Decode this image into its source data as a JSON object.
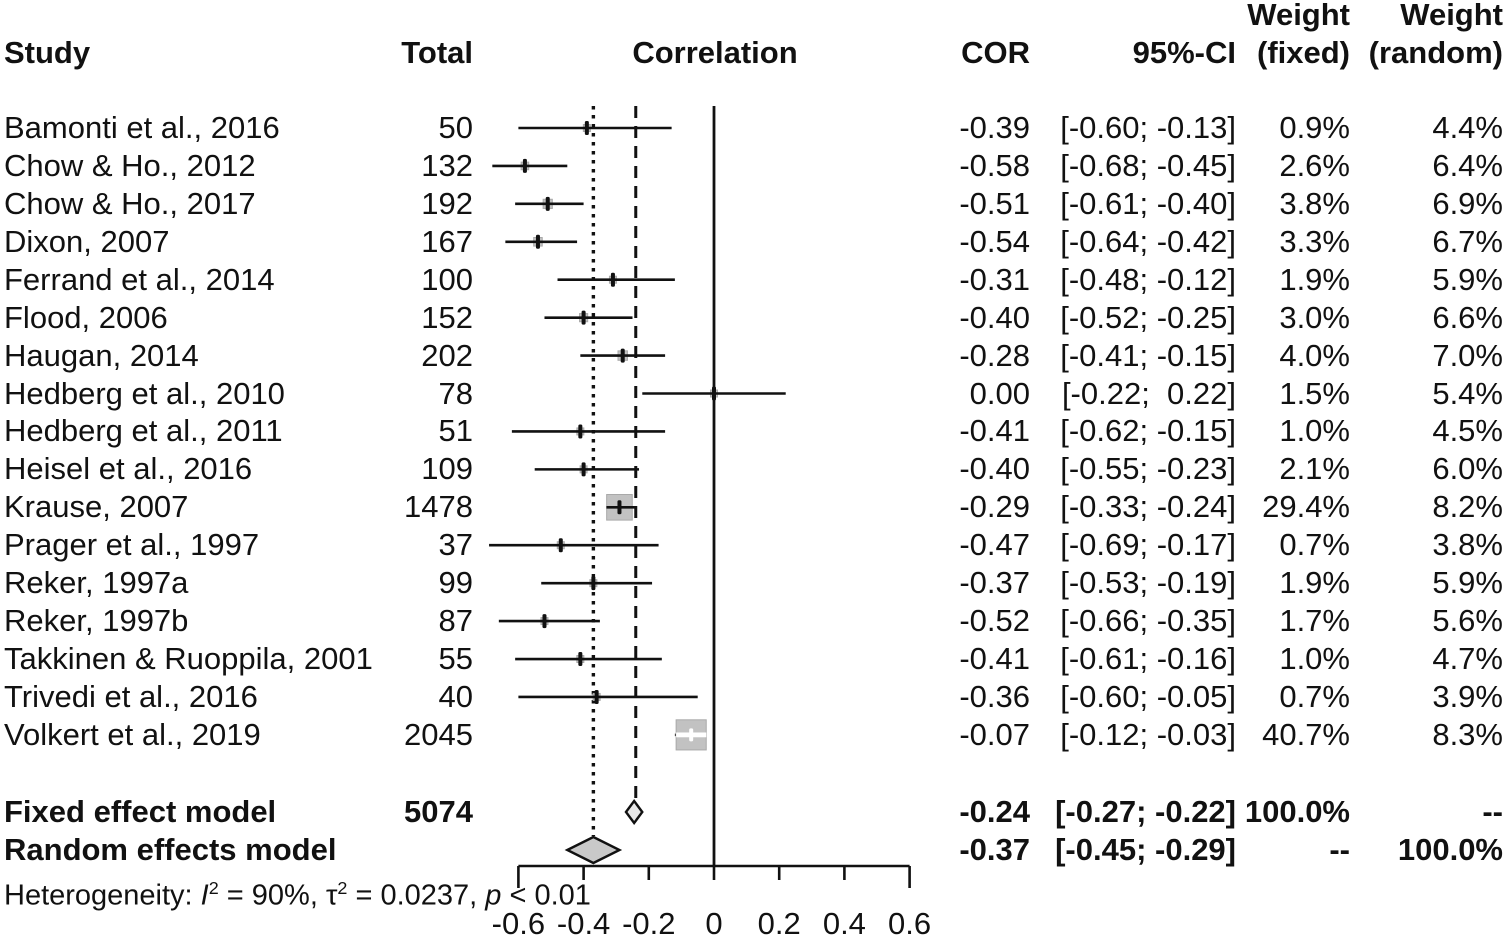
{
  "header": {
    "study": "Study",
    "total": "Total",
    "correlation": "Correlation",
    "cor": "COR",
    "ci": "95%-CI",
    "weight_fixed_line1": "Weight",
    "weight_fixed_line2": "(fixed)",
    "weight_random_line1": "Weight",
    "weight_random_line2": "(random)"
  },
  "colors": {
    "ink": "#111111",
    "square_fill": "#c2c2c2",
    "square_edge": "#a9a9a9",
    "fixed_diamond_fill": "#e8e8e8",
    "random_diamond_fill": "#c9c9c9"
  },
  "chart_data": {
    "type": "scatter",
    "variant": "forest-plot-meta-analysis",
    "xlabel": "Correlation",
    "x_axis": {
      "tick_values": [
        -0.6,
        -0.4,
        -0.2,
        0,
        0.2,
        0.4,
        0.6
      ],
      "ticks": [
        "-0.6",
        "-0.4",
        "-0.2",
        "0",
        "0.2",
        "0.4",
        "0.6"
      ],
      "range": [
        -0.6,
        0.6
      ]
    },
    "reference_lines": {
      "null_effect_solid": 0,
      "fixed_effect_dashed": -0.24,
      "random_effects_dotted": -0.37
    },
    "studies": [
      {
        "label": "Bamonti et al., 2016",
        "total": "50",
        "cor": -0.39,
        "ci": [
          -0.6,
          -0.13
        ],
        "cor_text": "-0.39",
        "ci_text": "[-0.60; -0.13]",
        "weight_fixed": "0.9%",
        "weight_random": "4.4%",
        "weight_fixed_value": 0.9
      },
      {
        "label": "Chow & Ho., 2012",
        "total": "132",
        "cor": -0.58,
        "ci": [
          -0.68,
          -0.45
        ],
        "cor_text": "-0.58",
        "ci_text": "[-0.68; -0.45]",
        "weight_fixed": "2.6%",
        "weight_random": "6.4%",
        "weight_fixed_value": 2.6
      },
      {
        "label": "Chow & Ho., 2017",
        "total": "192",
        "cor": -0.51,
        "ci": [
          -0.61,
          -0.4
        ],
        "cor_text": "-0.51",
        "ci_text": "[-0.61; -0.40]",
        "weight_fixed": "3.8%",
        "weight_random": "6.9%",
        "weight_fixed_value": 3.8
      },
      {
        "label": "Dixon, 2007",
        "total": "167",
        "cor": -0.54,
        "ci": [
          -0.64,
          -0.42
        ],
        "cor_text": "-0.54",
        "ci_text": "[-0.64; -0.42]",
        "weight_fixed": "3.3%",
        "weight_random": "6.7%",
        "weight_fixed_value": 3.3
      },
      {
        "label": "Ferrand et al., 2014",
        "total": "100",
        "cor": -0.31,
        "ci": [
          -0.48,
          -0.12
        ],
        "cor_text": "-0.31",
        "ci_text": "[-0.48; -0.12]",
        "weight_fixed": "1.9%",
        "weight_random": "5.9%",
        "weight_fixed_value": 1.9
      },
      {
        "label": "Flood, 2006",
        "total": "152",
        "cor": -0.4,
        "ci": [
          -0.52,
          -0.25
        ],
        "cor_text": "-0.40",
        "ci_text": "[-0.52; -0.25]",
        "weight_fixed": "3.0%",
        "weight_random": "6.6%",
        "weight_fixed_value": 3.0
      },
      {
        "label": "Haugan, 2014",
        "total": "202",
        "cor": -0.28,
        "ci": [
          -0.41,
          -0.15
        ],
        "cor_text": "-0.28",
        "ci_text": "[-0.41; -0.15]",
        "weight_fixed": "4.0%",
        "weight_random": "7.0%",
        "weight_fixed_value": 4.0
      },
      {
        "label": "Hedberg et al., 2010",
        "total": "78",
        "cor": 0.0,
        "ci": [
          -0.22,
          0.22
        ],
        "cor_text": "0.00",
        "ci_text": "[-0.22;  0.22]",
        "weight_fixed": "1.5%",
        "weight_random": "5.4%",
        "weight_fixed_value": 1.5
      },
      {
        "label": "Hedberg et al., 2011",
        "total": "51",
        "cor": -0.41,
        "ci": [
          -0.62,
          -0.15
        ],
        "cor_text": "-0.41",
        "ci_text": "[-0.62; -0.15]",
        "weight_fixed": "1.0%",
        "weight_random": "4.5%",
        "weight_fixed_value": 1.0
      },
      {
        "label": "Heisel et al., 2016",
        "total": "109",
        "cor": -0.4,
        "ci": [
          -0.55,
          -0.23
        ],
        "cor_text": "-0.40",
        "ci_text": "[-0.55; -0.23]",
        "weight_fixed": "2.1%",
        "weight_random": "6.0%",
        "weight_fixed_value": 2.1
      },
      {
        "label": "Krause, 2007",
        "total": "1478",
        "cor": -0.29,
        "ci": [
          -0.33,
          -0.24
        ],
        "cor_text": "-0.29",
        "ci_text": "[-0.33; -0.24]",
        "weight_fixed": "29.4%",
        "weight_random": "8.2%",
        "weight_fixed_value": 29.4
      },
      {
        "label": "Prager et al., 1997",
        "total": "37",
        "cor": -0.47,
        "ci": [
          -0.69,
          -0.17
        ],
        "cor_text": "-0.47",
        "ci_text": "[-0.69; -0.17]",
        "weight_fixed": "0.7%",
        "weight_random": "3.8%",
        "weight_fixed_value": 0.7
      },
      {
        "label": "Reker, 1997a",
        "total": "99",
        "cor": -0.37,
        "ci": [
          -0.53,
          -0.19
        ],
        "cor_text": "-0.37",
        "ci_text": "[-0.53; -0.19]",
        "weight_fixed": "1.9%",
        "weight_random": "5.9%",
        "weight_fixed_value": 1.9
      },
      {
        "label": "Reker, 1997b",
        "total": "87",
        "cor": -0.52,
        "ci": [
          -0.66,
          -0.35
        ],
        "cor_text": "-0.52",
        "ci_text": "[-0.66; -0.35]",
        "weight_fixed": "1.7%",
        "weight_random": "5.6%",
        "weight_fixed_value": 1.7
      },
      {
        "label": "Takkinen & Ruoppila, 2001",
        "total": "55",
        "cor": -0.41,
        "ci": [
          -0.61,
          -0.16
        ],
        "cor_text": "-0.41",
        "ci_text": "[-0.61; -0.16]",
        "weight_fixed": "1.0%",
        "weight_random": "4.7%",
        "weight_fixed_value": 1.0
      },
      {
        "label": "Trivedi et al., 2016",
        "total": "40",
        "cor": -0.36,
        "ci": [
          -0.6,
          -0.05
        ],
        "cor_text": "-0.36",
        "ci_text": "[-0.60; -0.05]",
        "weight_fixed": "0.7%",
        "weight_random": "3.9%",
        "weight_fixed_value": 0.7
      },
      {
        "label": "Volkert et al., 2019",
        "total": "2045",
        "cor": -0.07,
        "ci": [
          -0.12,
          -0.03
        ],
        "cor_text": "-0.07",
        "ci_text": "[-0.12; -0.03]",
        "weight_fixed": "40.7%",
        "weight_random": "8.3%",
        "weight_fixed_value": 40.7
      }
    ],
    "summary_rows": [
      {
        "label": "Fixed effect model",
        "total": "5074",
        "cor": -0.24,
        "ci": [
          -0.27,
          -0.22
        ],
        "cor_text": "-0.24",
        "ci_text": "[-0.27; -0.22]",
        "weight_fixed": "100.0%",
        "weight_random": "--",
        "diamond": "fixed"
      },
      {
        "label": "Random effects model",
        "total": "",
        "cor": -0.37,
        "ci": [
          -0.45,
          -0.29
        ],
        "cor_text": "-0.37",
        "ci_text": "[-0.45; -0.29]",
        "weight_fixed": "--",
        "weight_random": "100.0%",
        "diamond": "random"
      }
    ],
    "heterogeneity_segments": [
      {
        "text": "Heterogeneity: "
      },
      {
        "text": "I",
        "italic": true
      },
      {
        "text": "2",
        "sup": true
      },
      {
        "text": " = 90%, "
      },
      {
        "text": "τ"
      },
      {
        "text": "2",
        "sup": true
      },
      {
        "text": " = 0.0237, "
      },
      {
        "text": "p",
        "italic": true
      },
      {
        "text": " < 0.01"
      }
    ]
  }
}
